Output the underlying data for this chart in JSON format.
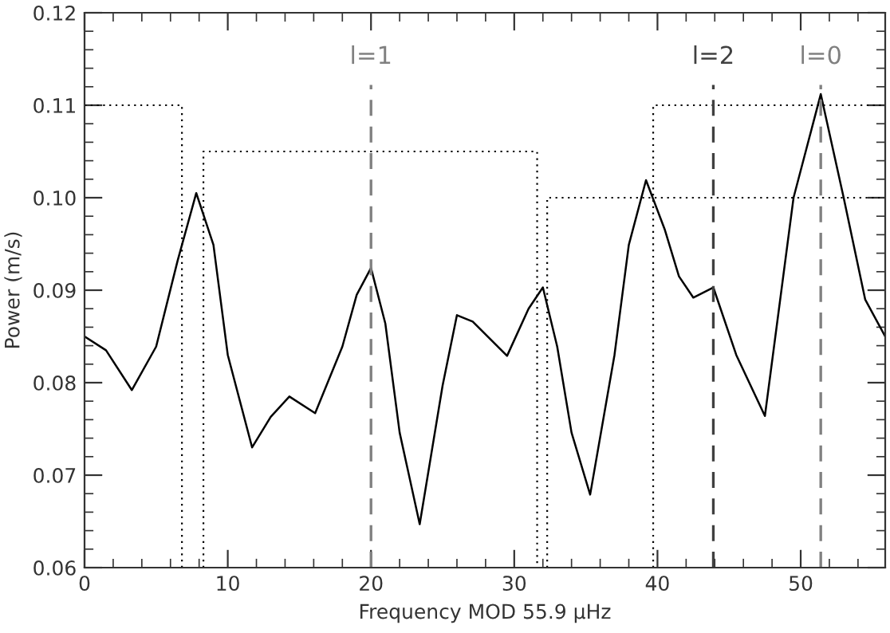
{
  "chart_data": {
    "type": "line",
    "xlabel": "Frequency MOD 55.9 μHz",
    "ylabel": "Power (m/s)",
    "xlim": [
      0,
      55.9
    ],
    "ylim": [
      0.06,
      0.12
    ],
    "xticks": [
      0,
      10,
      20,
      30,
      40,
      50
    ],
    "yticks": [
      {
        "value": 0.06,
        "label": "0.06"
      },
      {
        "value": 0.07,
        "label": "0.07"
      },
      {
        "value": 0.08,
        "label": "0.08"
      },
      {
        "value": 0.09,
        "label": "0.09"
      },
      {
        "value": 0.1,
        "label": "0.10"
      },
      {
        "value": 0.11,
        "label": "0.11"
      },
      {
        "value": 0.12,
        "label": "0.12"
      }
    ],
    "grid": false,
    "series": [
      {
        "color": "#000000",
        "line_style": "solid",
        "x": [
          0,
          1.5,
          3.3,
          5,
          6.5,
          7.8,
          9,
          10,
          11.7,
          13,
          14.3,
          16.1,
          18,
          19,
          20.0,
          21,
          22,
          23.4,
          25,
          26,
          27.1,
          29.5,
          31,
          32.0,
          33,
          34,
          35.3,
          37,
          38,
          39.2,
          40.5,
          41.5,
          42.5,
          43.9,
          45.5,
          47.5,
          47.9,
          49.5,
          51.4,
          53,
          54.5,
          55.9
        ],
        "values": [
          0.085,
          0.0835,
          0.0792,
          0.0839,
          0.0932,
          0.1005,
          0.0949,
          0.083,
          0.073,
          0.0763,
          0.0785,
          0.0767,
          0.0839,
          0.0895,
          0.0924,
          0.0864,
          0.0746,
          0.0647,
          0.0797,
          0.0873,
          0.0866,
          0.0829,
          0.088,
          0.0903,
          0.0839,
          0.0746,
          0.0679,
          0.083,
          0.0949,
          0.1019,
          0.0966,
          0.0915,
          0.0892,
          0.0903,
          0.083,
          0.0764,
          0.0811,
          0.1,
          0.1112,
          0.1,
          0.089,
          0.085
        ]
      },
      {
        "color": "#000000",
        "line_style": "dotted",
        "x": [
          0,
          6.8,
          6.8
        ],
        "values": [
          0.11,
          0.11,
          0.06
        ]
      },
      {
        "color": "#000000",
        "line_style": "dotted",
        "x": [
          8.3,
          8.3,
          31.6,
          31.6
        ],
        "values": [
          0.06,
          0.105,
          0.105,
          0.06
        ]
      },
      {
        "color": "#000000",
        "line_style": "dotted",
        "x": [
          32.3,
          32.3,
          55.9
        ],
        "values": [
          0.06,
          0.1,
          0.1
        ]
      },
      {
        "color": "#000000",
        "line_style": "dotted",
        "x": [
          39.7,
          39.7,
          55.9
        ],
        "values": [
          0.06,
          0.11,
          0.11
        ]
      }
    ],
    "ref_lines": [
      {
        "axis": "x",
        "value": 20.0,
        "color": "#808080",
        "line_style": "dashed"
      },
      {
        "axis": "x",
        "value": 43.9,
        "color": "#404040",
        "line_style": "dashed"
      },
      {
        "axis": "x",
        "value": 51.4,
        "color": "#808080",
        "line_style": "dashed"
      }
    ],
    "annotations": [
      "l=1",
      "l=2",
      "l=0"
    ]
  }
}
